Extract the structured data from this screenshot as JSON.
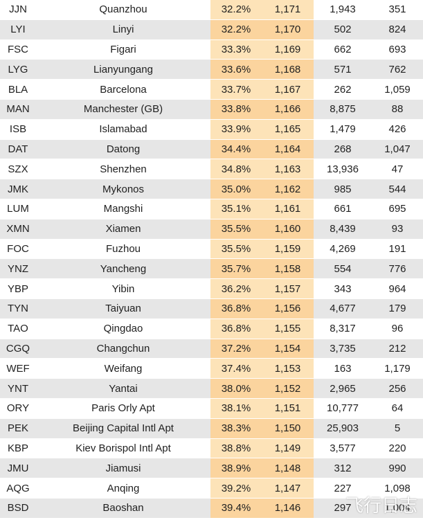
{
  "rows": [
    {
      "code": "JJN",
      "city": "Quanzhou",
      "pct": "32.2%",
      "rank": "1,171",
      "n1": "1,943",
      "n2": "351"
    },
    {
      "code": "LYI",
      "city": "Linyi",
      "pct": "32.2%",
      "rank": "1,170",
      "n1": "502",
      "n2": "824"
    },
    {
      "code": "FSC",
      "city": "Figari",
      "pct": "33.3%",
      "rank": "1,169",
      "n1": "662",
      "n2": "693"
    },
    {
      "code": "LYG",
      "city": "Lianyungang",
      "pct": "33.6%",
      "rank": "1,168",
      "n1": "571",
      "n2": "762"
    },
    {
      "code": "BLA",
      "city": "Barcelona",
      "pct": "33.7%",
      "rank": "1,167",
      "n1": "262",
      "n2": "1,059"
    },
    {
      "code": "MAN",
      "city": "Manchester (GB)",
      "pct": "33.8%",
      "rank": "1,166",
      "n1": "8,875",
      "n2": "88"
    },
    {
      "code": "ISB",
      "city": "Islamabad",
      "pct": "33.9%",
      "rank": "1,165",
      "n1": "1,479",
      "n2": "426"
    },
    {
      "code": "DAT",
      "city": "Datong",
      "pct": "34.4%",
      "rank": "1,164",
      "n1": "268",
      "n2": "1,047"
    },
    {
      "code": "SZX",
      "city": "Shenzhen",
      "pct": "34.8%",
      "rank": "1,163",
      "n1": "13,936",
      "n2": "47"
    },
    {
      "code": "JMK",
      "city": "Mykonos",
      "pct": "35.0%",
      "rank": "1,162",
      "n1": "985",
      "n2": "544"
    },
    {
      "code": "LUM",
      "city": "Mangshi",
      "pct": "35.1%",
      "rank": "1,161",
      "n1": "661",
      "n2": "695"
    },
    {
      "code": "XMN",
      "city": "Xiamen",
      "pct": "35.5%",
      "rank": "1,160",
      "n1": "8,439",
      "n2": "93"
    },
    {
      "code": "FOC",
      "city": "Fuzhou",
      "pct": "35.5%",
      "rank": "1,159",
      "n1": "4,269",
      "n2": "191"
    },
    {
      "code": "YNZ",
      "city": "Yancheng",
      "pct": "35.7%",
      "rank": "1,158",
      "n1": "554",
      "n2": "776"
    },
    {
      "code": "YBP",
      "city": "Yibin",
      "pct": "36.2%",
      "rank": "1,157",
      "n1": "343",
      "n2": "964"
    },
    {
      "code": "TYN",
      "city": "Taiyuan",
      "pct": "36.8%",
      "rank": "1,156",
      "n1": "4,677",
      "n2": "179"
    },
    {
      "code": "TAO",
      "city": "Qingdao",
      "pct": "36.8%",
      "rank": "1,155",
      "n1": "8,317",
      "n2": "96"
    },
    {
      "code": "CGQ",
      "city": "Changchun",
      "pct": "37.2%",
      "rank": "1,154",
      "n1": "3,735",
      "n2": "212"
    },
    {
      "code": "WEF",
      "city": "Weifang",
      "pct": "37.4%",
      "rank": "1,153",
      "n1": "163",
      "n2": "1,179"
    },
    {
      "code": "YNT",
      "city": "Yantai",
      "pct": "38.0%",
      "rank": "1,152",
      "n1": "2,965",
      "n2": "256"
    },
    {
      "code": "ORY",
      "city": "Paris Orly Apt",
      "pct": "38.1%",
      "rank": "1,151",
      "n1": "10,777",
      "n2": "64"
    },
    {
      "code": "PEK",
      "city": "Beijing Capital Intl Apt",
      "pct": "38.3%",
      "rank": "1,150",
      "n1": "25,903",
      "n2": "5"
    },
    {
      "code": "KBP",
      "city": "Kiev Borispol Intl Apt",
      "pct": "38.8%",
      "rank": "1,149",
      "n1": "3,577",
      "n2": "220"
    },
    {
      "code": "JMU",
      "city": "Jiamusi",
      "pct": "38.9%",
      "rank": "1,148",
      "n1": "312",
      "n2": "990"
    },
    {
      "code": "AQG",
      "city": "Anqing",
      "pct": "39.2%",
      "rank": "1,147",
      "n1": "227",
      "n2": "1,098"
    },
    {
      "code": "BSD",
      "city": "Baoshan",
      "pct": "39.4%",
      "rank": "1,146",
      "n1": "297",
      "n2": "1,004"
    }
  ],
  "watermark": "飞行日志"
}
